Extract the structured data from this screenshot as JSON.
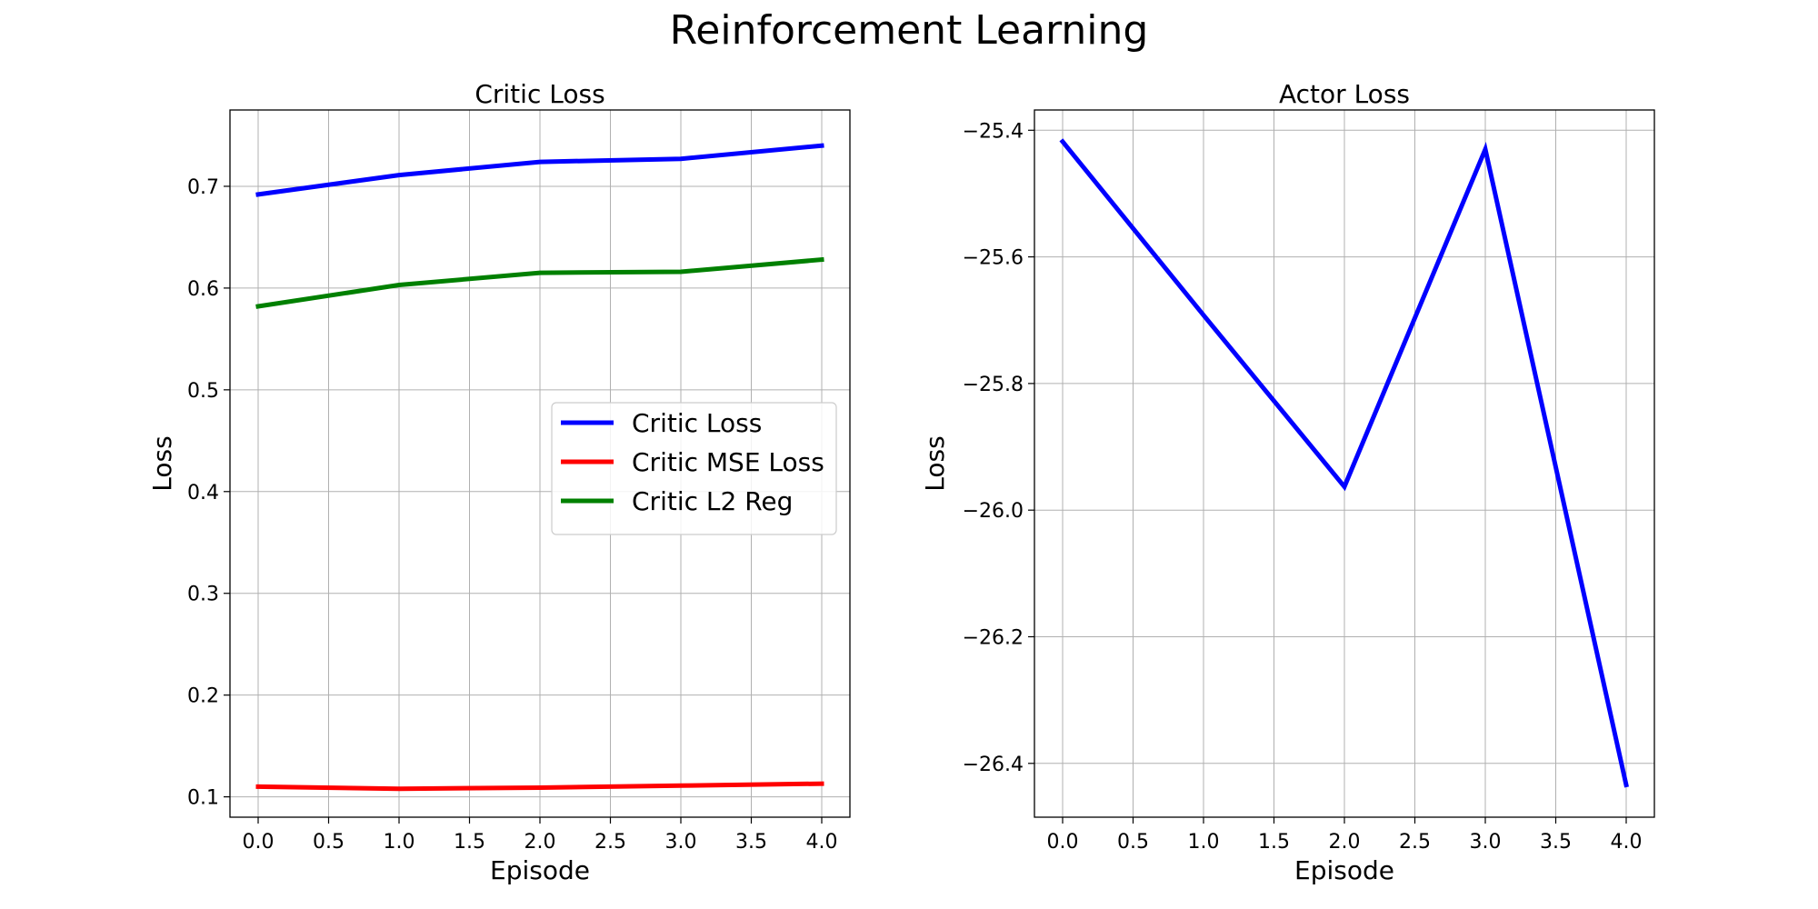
{
  "figure_title": "Reinforcement Learning",
  "chart_data": [
    {
      "type": "line",
      "title": "Critic Loss",
      "xlabel": "Episode",
      "ylabel": "Loss",
      "xlim": [
        -0.2,
        4.2
      ],
      "ylim": [
        0.08,
        0.775
      ],
      "xticks": [
        0.0,
        0.5,
        1.0,
        1.5,
        2.0,
        2.5,
        3.0,
        3.5,
        4.0
      ],
      "xtick_labels": [
        "0.0",
        "0.5",
        "1.0",
        "1.5",
        "2.0",
        "2.5",
        "3.0",
        "3.5",
        "4.0"
      ],
      "yticks": [
        0.1,
        0.2,
        0.3,
        0.4,
        0.5,
        0.6,
        0.7
      ],
      "ytick_labels": [
        "0.1",
        "0.2",
        "0.3",
        "0.4",
        "0.5",
        "0.6",
        "0.7"
      ],
      "grid": true,
      "legend_position": "center-right",
      "x": [
        0,
        1,
        2,
        3,
        4
      ],
      "series": [
        {
          "name": "Critic Loss",
          "color": "#0000ff",
          "values": [
            0.692,
            0.711,
            0.724,
            0.727,
            0.74
          ]
        },
        {
          "name": "Critic MSE Loss",
          "color": "#ff0000",
          "values": [
            0.11,
            0.108,
            0.109,
            0.111,
            0.113
          ]
        },
        {
          "name": "Critic L2 Reg",
          "color": "#008000",
          "values": [
            0.582,
            0.603,
            0.615,
            0.616,
            0.628
          ]
        }
      ]
    },
    {
      "type": "line",
      "title": "Actor Loss",
      "xlabel": "Episode",
      "ylabel": "Loss",
      "xlim": [
        -0.2,
        4.2
      ],
      "ylim": [
        -26.485,
        -25.368
      ],
      "xticks": [
        0.0,
        0.5,
        1.0,
        1.5,
        2.0,
        2.5,
        3.0,
        3.5,
        4.0
      ],
      "xtick_labels": [
        "0.0",
        "0.5",
        "1.0",
        "1.5",
        "2.0",
        "2.5",
        "3.0",
        "3.5",
        "4.0"
      ],
      "yticks": [
        -25.4,
        -25.6,
        -25.8,
        -26.0,
        -26.2,
        -26.4
      ],
      "ytick_labels": [
        "−25.4",
        "−25.6",
        "−25.8",
        "−26.0",
        "−26.2",
        "−26.4"
      ],
      "grid": true,
      "x": [
        0,
        1,
        2,
        3,
        4
      ],
      "series": [
        {
          "color": "#0000ff",
          "values": [
            -25.418,
            -25.692,
            -25.963,
            -25.43,
            -26.434
          ]
        }
      ]
    }
  ]
}
